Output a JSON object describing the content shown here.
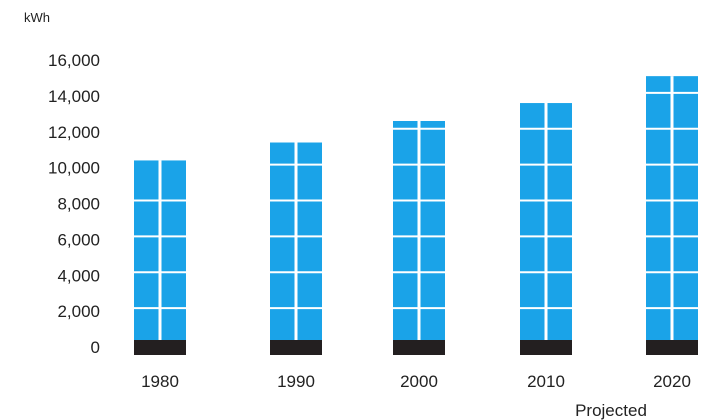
{
  "chart_data": {
    "type": "bar",
    "ylabel": "kWh",
    "categories": [
      "1980",
      "1990",
      "2000",
      "2010",
      "2020"
    ],
    "values": [
      10400,
      11400,
      12600,
      13600,
      15100
    ],
    "yticks": [
      "0",
      "2,000",
      "4,000",
      "6,000",
      "8,000",
      "10,000",
      "12,000",
      "14,000",
      "16,000"
    ],
    "ylim": [
      0,
      16000
    ],
    "annotations": [
      {
        "category": "2020",
        "text": "Projected"
      }
    ],
    "grid": false,
    "colors": {
      "bar": "#1aa3e8",
      "base": "#231f20",
      "segment_line": "#ffffff"
    }
  }
}
